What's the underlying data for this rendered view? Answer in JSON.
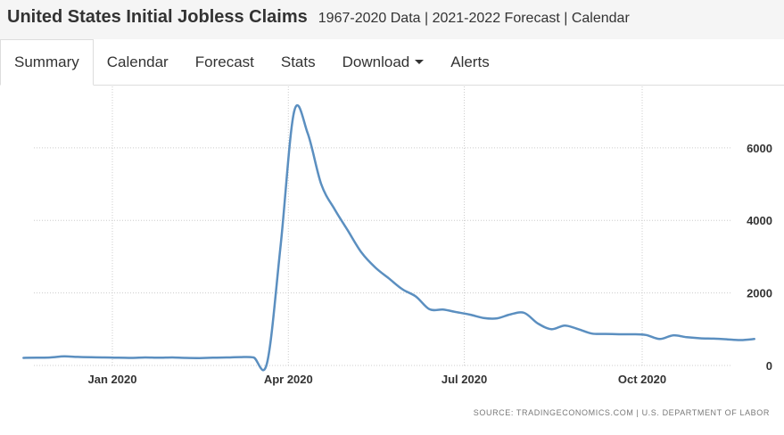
{
  "header": {
    "title": "United States Initial Jobless Claims",
    "subtitle": "1967-2020 Data | 2021-2022 Forecast | Calendar"
  },
  "tabs": [
    {
      "label": "Summary",
      "active": true
    },
    {
      "label": "Calendar",
      "active": false
    },
    {
      "label": "Forecast",
      "active": false
    },
    {
      "label": "Stats",
      "active": false
    },
    {
      "label": "Download",
      "active": false,
      "dropdown": true
    },
    {
      "label": "Alerts",
      "active": false
    }
  ],
  "chart_data": {
    "type": "line",
    "title": "",
    "xlabel": "",
    "ylabel": "",
    "x_ticks": [
      "Jan 2020",
      "Apr 2020",
      "Jul 2020",
      "Oct 2020"
    ],
    "y_ticks": [
      0,
      2000,
      4000,
      6000
    ],
    "ylim": [
      0,
      7200
    ],
    "grid": true,
    "line_color": "#5b8fc0",
    "source": "SOURCE: TRADINGECONOMICS.COM | U.S. DEPARTMENT OF LABOR",
    "series": [
      {
        "name": "",
        "x": [
          "2019-11-16",
          "2019-11-23",
          "2019-11-30",
          "2019-12-07",
          "2019-12-14",
          "2019-12-21",
          "2019-12-28",
          "2020-01-04",
          "2020-01-11",
          "2020-01-18",
          "2020-01-25",
          "2020-02-01",
          "2020-02-08",
          "2020-02-15",
          "2020-02-22",
          "2020-02-29",
          "2020-03-07",
          "2020-03-14",
          "2020-03-21",
          "2020-03-28",
          "2020-04-04",
          "2020-04-11",
          "2020-04-18",
          "2020-04-25",
          "2020-05-02",
          "2020-05-09",
          "2020-05-16",
          "2020-05-23",
          "2020-05-30",
          "2020-06-06",
          "2020-06-13",
          "2020-06-20",
          "2020-06-27",
          "2020-07-04",
          "2020-07-11",
          "2020-07-18",
          "2020-07-25",
          "2020-08-01",
          "2020-08-08",
          "2020-08-15",
          "2020-08-22",
          "2020-08-29",
          "2020-09-05",
          "2020-09-12",
          "2020-09-19",
          "2020-09-26",
          "2020-10-03",
          "2020-10-10",
          "2020-10-17",
          "2020-10-24",
          "2020-10-31",
          "2020-11-07",
          "2020-11-14",
          "2020-11-21",
          "2020-11-28"
        ],
        "values": [
          210,
          215,
          220,
          250,
          235,
          225,
          220,
          215,
          210,
          220,
          215,
          220,
          210,
          205,
          215,
          220,
          230,
          220,
          70,
          3300,
          7000,
          6400,
          5000,
          4300,
          3700,
          3100,
          2700,
          2400,
          2100,
          1900,
          1550,
          1540,
          1470,
          1400,
          1310,
          1300,
          1410,
          1450,
          1160,
          1000,
          1100,
          1000,
          880,
          870,
          860,
          860,
          840,
          730,
          830,
          780,
          750,
          740,
          720,
          700,
          730
        ]
      }
    ]
  }
}
